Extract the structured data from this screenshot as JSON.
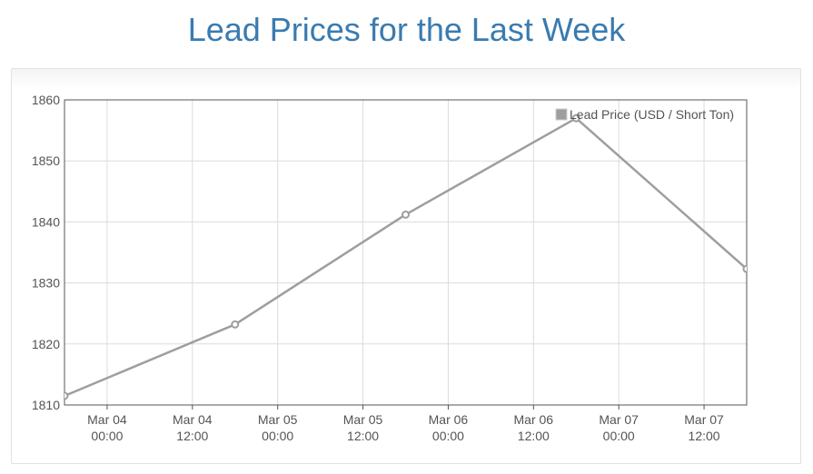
{
  "page": {
    "title": "Lead Prices for the Last Week"
  },
  "chart_data": {
    "type": "line",
    "title": "Lead Prices for the Last Week",
    "xlabel": "",
    "ylabel": "",
    "x_axis": {
      "type": "datetime",
      "range": [
        "2024-03-03T18:00",
        "2024-03-07T18:00"
      ],
      "tick_labels": [
        {
          "at": "2024-03-04T00:00",
          "line1": "Mar 04",
          "line2": "00:00"
        },
        {
          "at": "2024-03-04T12:00",
          "line1": "Mar 04",
          "line2": "12:00"
        },
        {
          "at": "2024-03-05T00:00",
          "line1": "Mar 05",
          "line2": "00:00"
        },
        {
          "at": "2024-03-05T12:00",
          "line1": "Mar 05",
          "line2": "12:00"
        },
        {
          "at": "2024-03-06T00:00",
          "line1": "Mar 06",
          "line2": "00:00"
        },
        {
          "at": "2024-03-06T12:00",
          "line1": "Mar 06",
          "line2": "12:00"
        },
        {
          "at": "2024-03-07T00:00",
          "line1": "Mar 07",
          "line2": "00:00"
        },
        {
          "at": "2024-03-07T12:00",
          "line1": "Mar 07",
          "line2": "12:00"
        }
      ]
    },
    "ylim": [
      1810,
      1860
    ],
    "y_ticks": [
      1810,
      1820,
      1830,
      1840,
      1850,
      1860
    ],
    "grid": true,
    "legend_position": "top-right",
    "series": [
      {
        "name": "Lead Price (USD / Short Ton)",
        "color": "#9e9e9e",
        "points": [
          {
            "x": "2024-03-03T18:00",
            "y": 1811.5
          },
          {
            "x": "2024-03-04T18:00",
            "y": 1823.2
          },
          {
            "x": "2024-03-05T18:00",
            "y": 1841.2
          },
          {
            "x": "2024-03-06T18:00",
            "y": 1857.0
          },
          {
            "x": "2024-03-07T18:00",
            "y": 1832.3
          }
        ]
      }
    ]
  }
}
